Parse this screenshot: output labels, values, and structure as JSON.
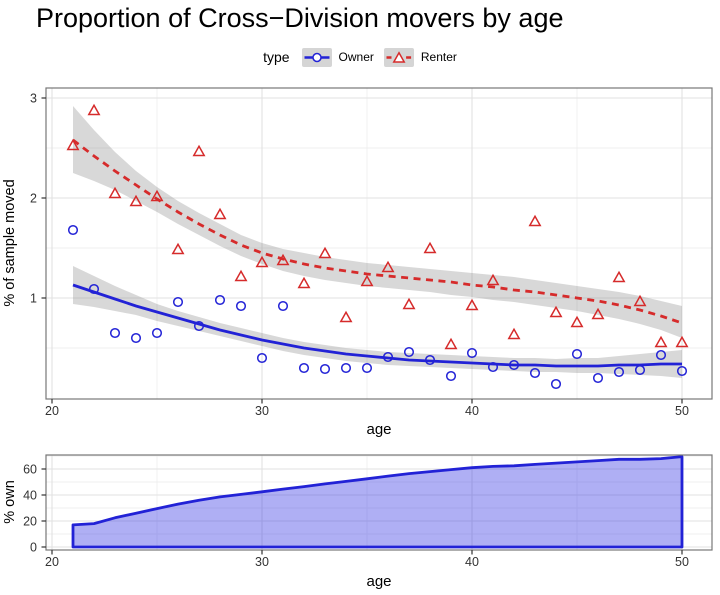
{
  "title": "Proportion of Cross−Division movers by age",
  "legend": {
    "title": "type",
    "items": [
      {
        "label": "Owner",
        "marker": "circle",
        "line": "solid"
      },
      {
        "label": "Renter",
        "marker": "triangle",
        "line": "dashed"
      }
    ]
  },
  "colors": {
    "owner": "#2222d6",
    "renter": "#d62b2b",
    "ribbon": "rgba(125,125,125,0.30)",
    "area_fill": "rgba(45,45,225,0.38)",
    "legend_key_bg": "#d5d5d5",
    "grid_major": "#e2e2e2",
    "grid_minor": "#efefef",
    "panel_border": "#777777",
    "tick_mark": "#333333",
    "tick_text": "#333333",
    "axis_title": "#000000"
  },
  "chart_data": [
    {
      "id": "movers-by-age",
      "type": "scatter",
      "title": "Proportion of Cross−Division movers by age",
      "xlabel": "age",
      "ylabel": "% of sample moved",
      "legend_position": "top",
      "grid": true,
      "xlim": [
        19.7,
        51.4
      ],
      "ylim": [
        0,
        3.1
      ],
      "x_ticks": [
        20,
        30,
        40,
        50
      ],
      "x_minor_ticks": [
        25,
        35,
        45
      ],
      "y_ticks": [
        1,
        2,
        3
      ],
      "y_minor_ticks": [
        0.5,
        1.5,
        2.5
      ],
      "ages": [
        21,
        22,
        23,
        24,
        25,
        26,
        27,
        28,
        29,
        30,
        31,
        32,
        33,
        34,
        35,
        36,
        37,
        38,
        39,
        40,
        41,
        42,
        43,
        44,
        45,
        46,
        47,
        48,
        49,
        50
      ],
      "series": [
        {
          "name": "Owner",
          "points": [
            1.68,
            1.09,
            0.65,
            0.6,
            0.65,
            0.96,
            0.72,
            0.98,
            0.92,
            0.4,
            0.92,
            0.3,
            0.29,
            0.3,
            0.3,
            0.41,
            0.46,
            0.38,
            0.22,
            0.45,
            0.31,
            0.33,
            0.25,
            0.14,
            0.44,
            0.2,
            0.26,
            0.28,
            0.43,
            0.27
          ],
          "trend": [
            1.13,
            1.06,
            0.99,
            0.92,
            0.86,
            0.8,
            0.74,
            0.68,
            0.63,
            0.58,
            0.54,
            0.5,
            0.47,
            0.44,
            0.42,
            0.4,
            0.38,
            0.37,
            0.36,
            0.35,
            0.34,
            0.33,
            0.33,
            0.32,
            0.32,
            0.32,
            0.33,
            0.33,
            0.34,
            0.34
          ],
          "ci_lower": [
            0.94,
            0.91,
            0.87,
            0.83,
            0.77,
            0.72,
            0.67,
            0.62,
            0.57,
            0.52,
            0.47,
            0.43,
            0.4,
            0.37,
            0.35,
            0.33,
            0.32,
            0.31,
            0.3,
            0.29,
            0.28,
            0.27,
            0.26,
            0.26,
            0.25,
            0.25,
            0.24,
            0.23,
            0.22,
            0.2
          ],
          "ci_upper": [
            1.32,
            1.22,
            1.12,
            1.03,
            0.94,
            0.87,
            0.81,
            0.75,
            0.7,
            0.65,
            0.6,
            0.56,
            0.53,
            0.5,
            0.48,
            0.46,
            0.45,
            0.44,
            0.43,
            0.42,
            0.41,
            0.4,
            0.4,
            0.39,
            0.4,
            0.4,
            0.42,
            0.44,
            0.46,
            0.48
          ]
        },
        {
          "name": "Renter",
          "points": [
            2.52,
            2.87,
            2.04,
            1.96,
            2.01,
            1.48,
            2.46,
            1.83,
            1.21,
            1.35,
            1.37,
            1.14,
            1.44,
            0.8,
            1.16,
            1.3,
            0.93,
            1.49,
            0.53,
            0.92,
            1.17,
            0.63,
            1.76,
            0.85,
            0.75,
            0.83,
            1.2,
            0.96,
            0.55,
            0.55
          ],
          "trend": [
            2.58,
            2.42,
            2.27,
            2.13,
            1.99,
            1.86,
            1.74,
            1.63,
            1.53,
            1.45,
            1.39,
            1.34,
            1.3,
            1.27,
            1.24,
            1.22,
            1.2,
            1.18,
            1.16,
            1.13,
            1.11,
            1.08,
            1.06,
            1.03,
            1.0,
            0.97,
            0.93,
            0.88,
            0.82,
            0.75
          ],
          "ci_lower": [
            2.25,
            2.17,
            2.08,
            1.97,
            1.86,
            1.74,
            1.63,
            1.52,
            1.42,
            1.34,
            1.27,
            1.22,
            1.18,
            1.15,
            1.12,
            1.1,
            1.08,
            1.06,
            1.03,
            1.01,
            0.98,
            0.96,
            0.93,
            0.9,
            0.87,
            0.83,
            0.79,
            0.74,
            0.68,
            0.6
          ],
          "ci_upper": [
            2.92,
            2.68,
            2.46,
            2.27,
            2.11,
            1.97,
            1.85,
            1.74,
            1.63,
            1.55,
            1.49,
            1.45,
            1.41,
            1.38,
            1.35,
            1.33,
            1.31,
            1.29,
            1.27,
            1.25,
            1.23,
            1.21,
            1.18,
            1.15,
            1.12,
            1.09,
            1.06,
            1.02,
            0.97,
            0.92
          ]
        }
      ]
    },
    {
      "id": "pct-own",
      "type": "area",
      "xlabel": "age",
      "ylabel": "% own",
      "grid": true,
      "xlim": [
        19.7,
        51.4
      ],
      "ylim": [
        -3.5,
        73.5
      ],
      "x_ticks": [
        20,
        30,
        40,
        50
      ],
      "x_minor_ticks": [
        25,
        35,
        45
      ],
      "y_ticks": [
        0,
        20,
        40,
        60
      ],
      "y_minor_ticks": [
        10,
        30,
        50,
        70
      ],
      "ages": [
        21,
        22,
        23,
        24,
        25,
        26,
        27,
        28,
        29,
        30,
        31,
        32,
        33,
        34,
        35,
        36,
        37,
        38,
        39,
        40,
        41,
        42,
        43,
        44,
        45,
        46,
        47,
        48,
        49,
        50
      ],
      "values": [
        17,
        18,
        22.5,
        26,
        29.5,
        33,
        36,
        38.5,
        40.5,
        42.5,
        44.5,
        46.5,
        48.5,
        50.5,
        52.5,
        54.5,
        56.5,
        58,
        59.5,
        61,
        62,
        62.5,
        63.5,
        64.5,
        65.5,
        66.5,
        67.5,
        67.5,
        68,
        69.5
      ]
    }
  ]
}
